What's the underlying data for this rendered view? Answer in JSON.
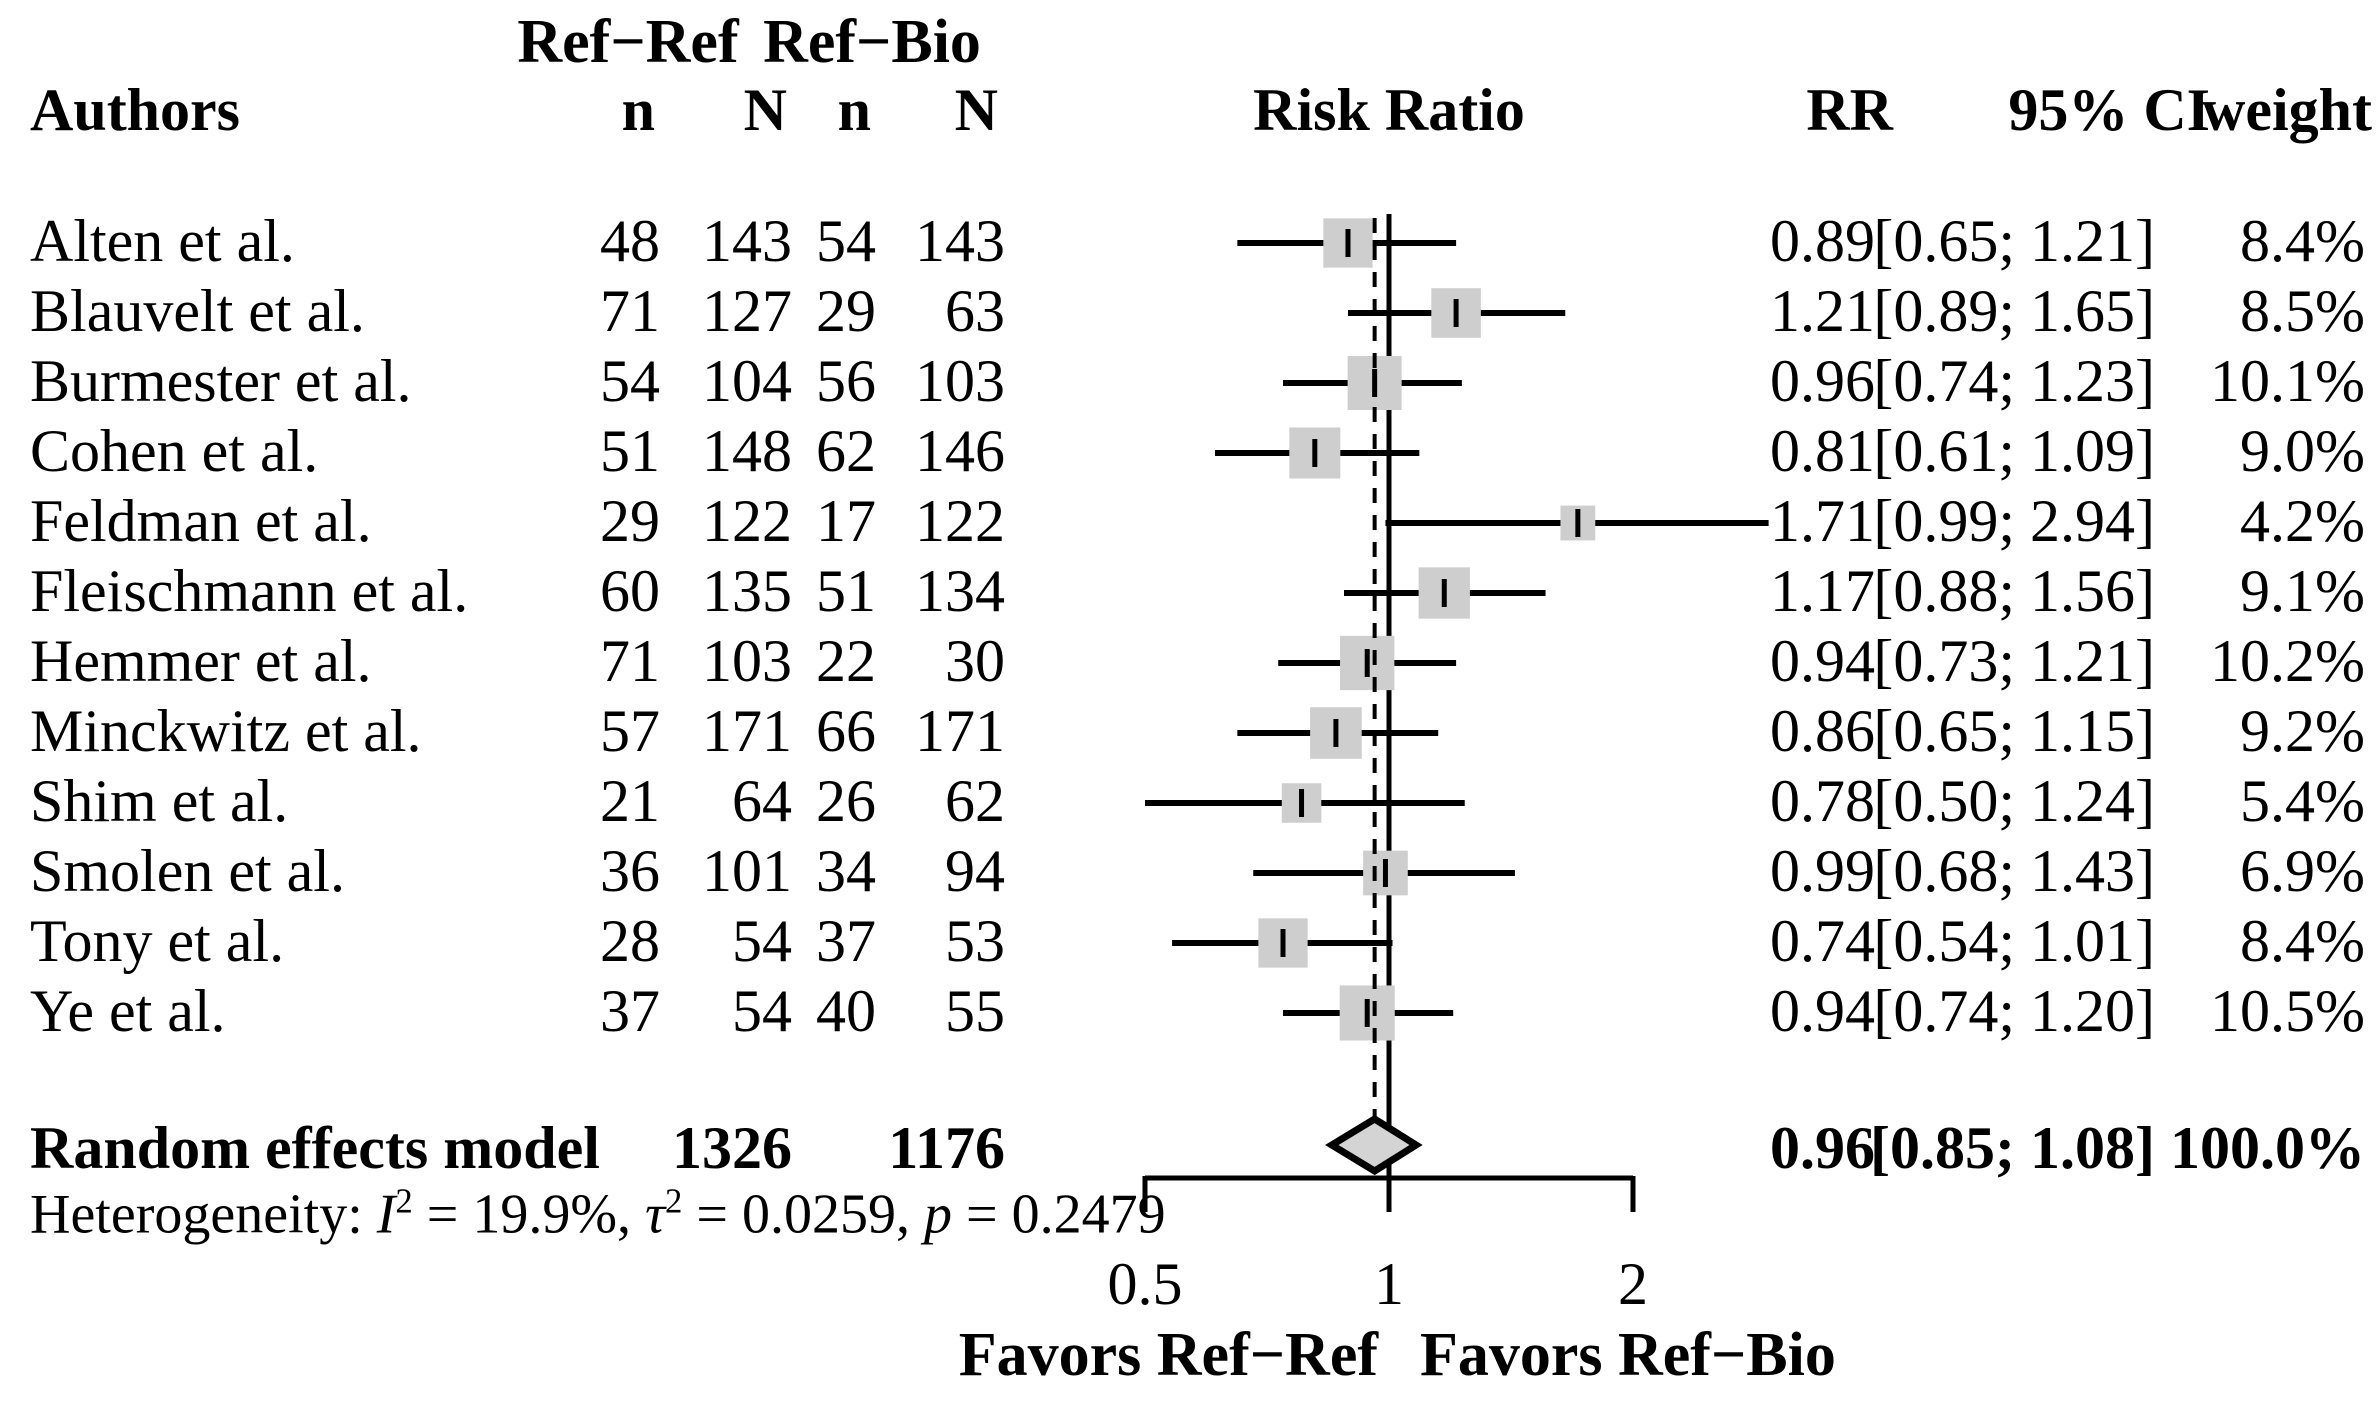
{
  "header": {
    "authors": "Authors",
    "group_ref_ref": "Ref−Ref",
    "group_ref_bio": "Ref−Bio",
    "col_n1": "n",
    "col_N1": "N",
    "col_n2": "n",
    "col_N2": "N",
    "risk_ratio": "Risk Ratio",
    "rr": "RR",
    "ci": "95% CI",
    "weight": "weight"
  },
  "chart_data": {
    "type": "forest",
    "x_axis": {
      "scale": "log",
      "ticks": [
        0.5,
        1,
        2
      ],
      "tick_labels": [
        "0.5",
        "1",
        "2"
      ],
      "reference_line": 1.0,
      "dashed_line_at": 0.96,
      "favors_left": "Favors Ref−Ref",
      "favors_right": "Favors Ref−Bio"
    },
    "studies": [
      {
        "author": "Alten et al.",
        "n_ref": 48,
        "N_ref": 143,
        "n_bio": 54,
        "N_bio": 143,
        "rr": 0.89,
        "ci": [
          0.65,
          1.21
        ],
        "weight_pct": 8.4
      },
      {
        "author": "Blauvelt et al.",
        "n_ref": 71,
        "N_ref": 127,
        "n_bio": 29,
        "N_bio": 63,
        "rr": 1.21,
        "ci": [
          0.89,
          1.65
        ],
        "weight_pct": 8.5
      },
      {
        "author": "Burmester et al.",
        "n_ref": 54,
        "N_ref": 104,
        "n_bio": 56,
        "N_bio": 103,
        "rr": 0.96,
        "ci": [
          0.74,
          1.23
        ],
        "weight_pct": 10.1
      },
      {
        "author": "Cohen et al.",
        "n_ref": 51,
        "N_ref": 148,
        "n_bio": 62,
        "N_bio": 146,
        "rr": 0.81,
        "ci": [
          0.61,
          1.09
        ],
        "weight_pct": 9.0
      },
      {
        "author": "Feldman et al.",
        "n_ref": 29,
        "N_ref": 122,
        "n_bio": 17,
        "N_bio": 122,
        "rr": 1.71,
        "ci": [
          0.99,
          2.94
        ],
        "weight_pct": 4.2
      },
      {
        "author": "Fleischmann et al.",
        "n_ref": 60,
        "N_ref": 135,
        "n_bio": 51,
        "N_bio": 134,
        "rr": 1.17,
        "ci": [
          0.88,
          1.56
        ],
        "weight_pct": 9.1
      },
      {
        "author": "Hemmer et al.",
        "n_ref": 71,
        "N_ref": 103,
        "n_bio": 22,
        "N_bio": 30,
        "rr": 0.94,
        "ci": [
          0.73,
          1.21
        ],
        "weight_pct": 10.2
      },
      {
        "author": "Minckwitz et al.",
        "n_ref": 57,
        "N_ref": 171,
        "n_bio": 66,
        "N_bio": 171,
        "rr": 0.86,
        "ci": [
          0.65,
          1.15
        ],
        "weight_pct": 9.2
      },
      {
        "author": "Shim et al.",
        "n_ref": 21,
        "N_ref": 64,
        "n_bio": 26,
        "N_bio": 62,
        "rr": 0.78,
        "ci": [
          0.5,
          1.24
        ],
        "weight_pct": 5.4
      },
      {
        "author": "Smolen et al.",
        "n_ref": 36,
        "N_ref": 101,
        "n_bio": 34,
        "N_bio": 94,
        "rr": 0.99,
        "ci": [
          0.68,
          1.43
        ],
        "weight_pct": 6.9
      },
      {
        "author": "Tony et al.",
        "n_ref": 28,
        "N_ref": 54,
        "n_bio": 37,
        "N_bio": 53,
        "rr": 0.74,
        "ci": [
          0.54,
          1.01
        ],
        "weight_pct": 8.4
      },
      {
        "author": "Ye et al.",
        "n_ref": 37,
        "N_ref": 54,
        "n_bio": 40,
        "N_bio": 55,
        "rr": 0.94,
        "ci": [
          0.74,
          1.2
        ],
        "weight_pct": 10.5
      }
    ],
    "pooled": {
      "label": "Random effects model",
      "N_ref_total": 1326,
      "N_bio_total": 1176,
      "rr": 0.96,
      "ci": [
        0.85,
        1.08
      ],
      "weight_pct": 100.0
    },
    "heterogeneity": {
      "prefix": "Heterogeneity: ",
      "i_sym": "I",
      "i_sup": "2",
      "i_rest": " = 19.9%, ",
      "tau_sym": "τ",
      "tau_sup": "2",
      "tau_rest": " = 0.0259, ",
      "p_sym": "p",
      "p_rest": " = 0.2479"
    },
    "marker_color": "#cecece",
    "diamond_color": "#d4d4d4",
    "line_color": "#000000"
  }
}
